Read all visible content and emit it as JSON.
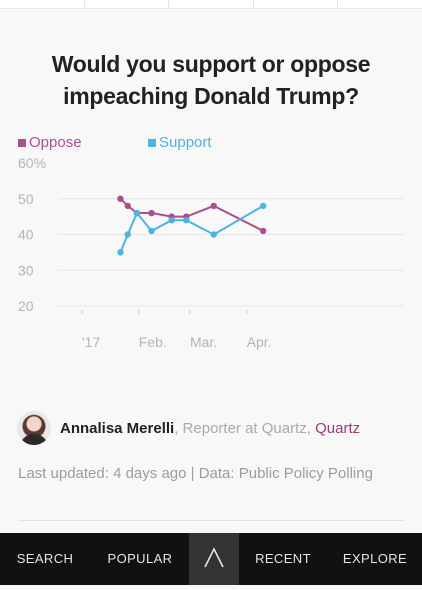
{
  "chart_data": {
    "type": "line",
    "title": "Would you support or oppose impeaching Donald Trump?",
    "x_tick_labels": [
      "'17",
      "Feb.",
      "Mar.",
      "Apr."
    ],
    "y_tick_labels": [
      "60%",
      "50",
      "40",
      "30",
      "20"
    ],
    "ylim": [
      20,
      60
    ],
    "grid": true,
    "legend_position": "top-left",
    "series": [
      {
        "name": "Oppose",
        "color": "#a8508f",
        "points": [
          {
            "x": "2017-01-22",
            "y": 50
          },
          {
            "x": "2017-01-26",
            "y": 48
          },
          {
            "x": "2017-01-31",
            "y": 46
          },
          {
            "x": "2017-02-08",
            "y": 46
          },
          {
            "x": "2017-02-19",
            "y": 45
          },
          {
            "x": "2017-02-27",
            "y": 45
          },
          {
            "x": "2017-03-14",
            "y": 48
          },
          {
            "x": "2017-04-10",
            "y": 41
          }
        ]
      },
      {
        "name": "Support",
        "color": "#4db3e0",
        "points": [
          {
            "x": "2017-01-22",
            "y": 35
          },
          {
            "x": "2017-01-26",
            "y": 40
          },
          {
            "x": "2017-01-31",
            "y": 46
          },
          {
            "x": "2017-02-08",
            "y": 41
          },
          {
            "x": "2017-02-19",
            "y": 44
          },
          {
            "x": "2017-02-27",
            "y": 44
          },
          {
            "x": "2017-03-14",
            "y": 40
          },
          {
            "x": "2017-04-10",
            "y": 48
          }
        ]
      }
    ]
  },
  "byline": {
    "author": "Annalisa Merelli",
    "role": ", Reporter at Quartz, ",
    "publication": "Quartz"
  },
  "meta": "Last updated: 4 days ago  |  Data: Public Policy Polling",
  "nav": {
    "search": "SEARCH",
    "popular": "POPULAR",
    "home_glyph": "Λ",
    "recent": "RECENT",
    "explore": "EXPLORE"
  },
  "colors": {
    "oppose": "#a8508f",
    "support": "#4db3e0",
    "nav_bg": "#111111"
  }
}
